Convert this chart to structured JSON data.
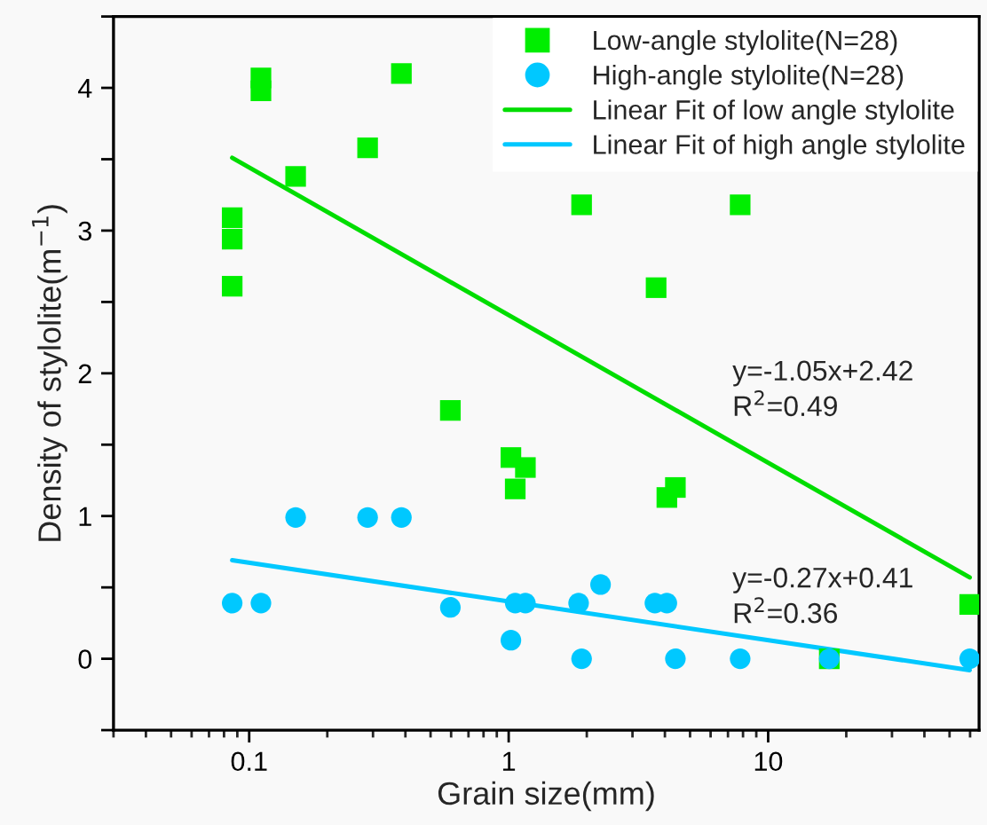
{
  "chart_data": {
    "type": "scatter",
    "xlabel": "Grain size(mm)",
    "ylabel": "Density of stylolite(m$^{−1}$)",
    "log": "x",
    "xlim": [
      0.03,
      65
    ],
    "xticks": [
      0.1,
      1,
      10
    ],
    "ylim": [
      -0.5,
      4.5
    ],
    "yticks": [
      {
        "value": -0.5,
        "label": null
      },
      0,
      {
        "value": 0.5,
        "label": null
      },
      1,
      {
        "value": 1.5,
        "label": null
      },
      2,
      {
        "value": 2.5,
        "label": null
      },
      3,
      {
        "value": 3.5,
        "label": null
      },
      4,
      {
        "value": 4.5,
        "label": null
      }
    ],
    "grid": false,
    "legend": "top right",
    "series": [
      {
        "name": "Low-angle stylolite(N=28)",
        "marker": "square",
        "color": "#00ee00",
        "x": [
          0.086,
          0.086,
          0.086,
          0.111,
          0.111,
          0.151,
          0.286,
          0.386,
          0.596,
          1.02,
          1.16,
          1.06,
          1.91,
          7.8,
          3.7,
          4.39,
          4.07,
          59.8,
          17.2
        ],
        "values": [
          3.09,
          2.94,
          2.61,
          4.07,
          3.98,
          3.38,
          3.58,
          4.1,
          1.74,
          1.41,
          1.34,
          1.19,
          3.18,
          3.18,
          2.6,
          1.2,
          1.13,
          0.38,
          0
        ]
      },
      {
        "name": "High-angle stylolite(N=28)",
        "marker": "circle",
        "color": "#00c8ff",
        "x": [
          0.086,
          0.111,
          0.151,
          0.286,
          0.386,
          0.596,
          1.06,
          1.16,
          1.02,
          1.86,
          2.26,
          3.66,
          4.07,
          1.91,
          4.39,
          7.8,
          17.2,
          59.8
        ],
        "values": [
          0.39,
          0.39,
          0.99,
          0.99,
          0.99,
          0.36,
          0.39,
          0.39,
          0.13,
          0.39,
          0.52,
          0.39,
          0.39,
          0,
          0,
          0,
          0,
          0
        ]
      },
      {
        "name": "Linear Fit of low angle stylolite",
        "type": "line",
        "marker": "none",
        "line_style": "solid",
        "color": "#00dd00",
        "x": [
          0.086,
          59.8
        ],
        "values": [
          3.51,
          0.57
        ]
      },
      {
        "name": "Linear Fit of high angle stylolite",
        "type": "line",
        "marker": "none",
        "line_style": "solid",
        "color": "#00c8ff",
        "x": [
          0.086,
          59.8
        ],
        "values": [
          0.69,
          -0.08
        ]
      }
    ],
    "annotations": [
      "y=-1.05x+2.42",
      "R$^{2}$=0.49",
      "y=-0.27x+0.41",
      "R$^{2}$=0.36"
    ]
  }
}
